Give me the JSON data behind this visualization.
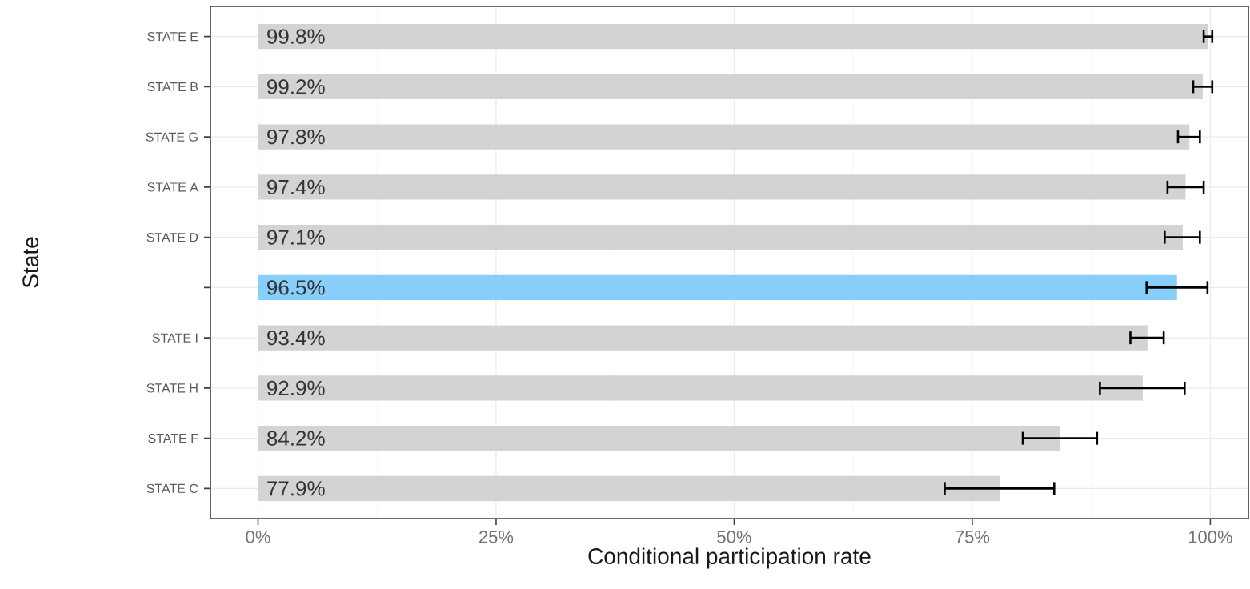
{
  "chart_data": {
    "type": "bar",
    "orientation": "horizontal",
    "xlabel": "Conditional participation rate",
    "ylabel": "State",
    "categories": [
      "STATE E",
      "STATE B",
      "STATE G",
      "STATE A",
      "STATE D",
      null,
      "STATE I",
      "STATE H",
      "STATE F",
      "STATE C"
    ],
    "values": [
      99.8,
      99.2,
      97.8,
      97.4,
      97.1,
      96.5,
      93.4,
      92.9,
      84.2,
      77.9
    ],
    "value_labels": [
      "99.8%",
      "99.2%",
      "97.8%",
      "97.4%",
      "97.1%",
      "96.5%",
      "93.4%",
      "92.9%",
      "84.2%",
      "77.9%"
    ],
    "colors": [
      "#d3d3d3",
      "#d3d3d3",
      "#d3d3d3",
      "#d3d3d3",
      "#d3d3d3",
      "#87cefa",
      "#d3d3d3",
      "#d3d3d3",
      "#d3d3d3",
      "#d3d3d3"
    ],
    "errors": [
      [
        99.3,
        100.2
      ],
      [
        98.2,
        100.2
      ],
      [
        96.6,
        98.9
      ],
      [
        95.5,
        99.3
      ],
      [
        95.2,
        98.9
      ],
      [
        93.3,
        99.7
      ],
      [
        91.6,
        95.1
      ],
      [
        88.4,
        97.3
      ],
      [
        80.3,
        88.1
      ],
      [
        72.1,
        83.6
      ]
    ],
    "xlim": [
      -5,
      104
    ],
    "xticks": [
      {
        "value": 0,
        "label": "0%"
      },
      {
        "value": 25,
        "label": "25%"
      },
      {
        "value": 50,
        "label": "50%"
      },
      {
        "value": 75,
        "label": "75%"
      },
      {
        "value": 100,
        "label": "100%"
      }
    ],
    "grid": true
  }
}
